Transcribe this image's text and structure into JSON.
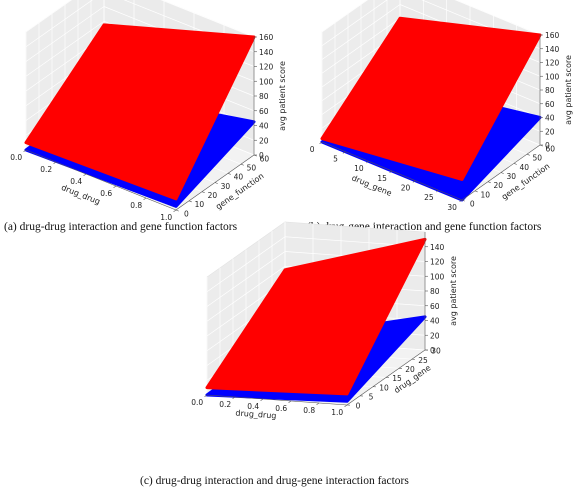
{
  "chart_data": [
    {
      "type": "surface3d",
      "caption": "(a) drug-drug interaction and gene function factors",
      "xlabel": "drug_drug",
      "ylabel": "gene_function",
      "zlabel": "avg patient score",
      "xlim": [
        0,
        1
      ],
      "ylim": [
        0,
        60
      ],
      "zlim": [
        0,
        160
      ],
      "xticks": [
        "0.0",
        "0.2",
        "0.4",
        "0.6",
        "0.8",
        "1.0"
      ],
      "yticks": [
        "0",
        "10",
        "20",
        "30",
        "40",
        "50",
        "60"
      ],
      "zticks": [
        "0",
        "20",
        "40",
        "60",
        "80",
        "100",
        "120",
        "140",
        "160"
      ],
      "series": [
        {
          "color": "#ff0000",
          "corners": [
            [
              0,
              0,
              10
            ],
            [
              1,
              0,
              15
            ],
            [
              0,
              60,
              95
            ],
            [
              1,
              60,
              160
            ]
          ]
        },
        {
          "color": "#0000ff",
          "corners": [
            [
              0,
              0,
              0
            ],
            [
              1,
              0,
              5
            ],
            [
              0,
              60,
              3
            ],
            [
              1,
              60,
              45
            ]
          ]
        }
      ]
    },
    {
      "type": "surface3d",
      "caption": "(b) drug-gene interaction and gene function factors",
      "xlabel": "drug_gene",
      "ylabel": "gene_function",
      "zlabel": "avg patient score",
      "xlim": [
        0,
        30
      ],
      "ylim": [
        0,
        60
      ],
      "zlim": [
        0,
        160
      ],
      "xticks": [
        "0",
        "5",
        "10",
        "15",
        "20",
        "25",
        "30"
      ],
      "yticks": [
        "0",
        "10",
        "20",
        "30",
        "40",
        "50",
        "60"
      ],
      "zticks": [
        "0",
        "20",
        "40",
        "60",
        "80",
        "100",
        "120",
        "140",
        "160"
      ],
      "series": [
        {
          "color": "#ff0000",
          "corners": [
            [
              0,
              0,
              5
            ],
            [
              30,
              0,
              30
            ],
            [
              0,
              60,
              100
            ],
            [
              30,
              60,
              160
            ]
          ]
        },
        {
          "color": "#0000ff",
          "corners": [
            [
              0,
              0,
              0
            ],
            [
              30,
              0,
              0
            ],
            [
              0,
              60,
              5
            ],
            [
              30,
              60,
              40
            ]
          ]
        }
      ]
    },
    {
      "type": "surface3d",
      "caption": "(c) drug-drug interaction and drug-gene interaction factors",
      "xlabel": "drug_drug",
      "ylabel": "drug_gene",
      "zlabel": "avg patient score",
      "xlim": [
        0,
        1
      ],
      "ylim": [
        0,
        30
      ],
      "zlim": [
        0,
        160
      ],
      "xticks": [
        "0.0",
        "0.2",
        "0.4",
        "0.6",
        "0.8",
        "1.0"
      ],
      "yticks": [
        "0",
        "5",
        "10",
        "15",
        "20",
        "25",
        "30"
      ],
      "zticks": [
        "0",
        "20",
        "40",
        "60",
        "80",
        "100",
        "120",
        "140"
      ],
      "series": [
        {
          "color": "#ff0000",
          "corners": [
            [
              0,
              0,
              10
            ],
            [
              1,
              0,
              15
            ],
            [
              0,
              30,
              95
            ],
            [
              1,
              30,
              150
            ]
          ]
        },
        {
          "color": "#0000ff",
          "corners": [
            [
              0,
              0,
              0
            ],
            [
              1,
              0,
              5
            ],
            [
              0,
              30,
              3
            ],
            [
              1,
              30,
              45
            ]
          ]
        }
      ]
    }
  ]
}
